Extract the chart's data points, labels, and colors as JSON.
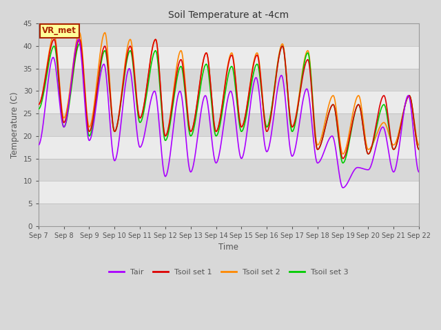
{
  "title": "Soil Temperature at -4cm",
  "xlabel": "Time",
  "ylabel": "Temperature (C)",
  "ylim": [
    0,
    45
  ],
  "xlim": [
    0,
    15
  ],
  "bg_color": "#d8d8d8",
  "plot_bg_color": "#d8d8d8",
  "white_band_color": "#ebebeb",
  "grid_color": "#cccccc",
  "label_color": "#555555",
  "annotation_text": "VR_met",
  "annotation_bg": "#ffff99",
  "annotation_border": "#aa2200",
  "legend_labels": [
    "Tair",
    "Tsoil set 1",
    "Tsoil set 2",
    "Tsoil set 3"
  ],
  "line_colors": [
    "#aa00ff",
    "#dd0000",
    "#ff8800",
    "#00cc00"
  ],
  "xtick_labels": [
    "Sep 7",
    "Sep 8",
    "Sep 9",
    "Sep 10",
    "Sep 11",
    "Sep 12",
    "Sep 13",
    "Sep 14",
    "Sep 15",
    "Sep 16",
    "Sep 17",
    "Sep 18",
    "Sep 19",
    "Sep 20",
    "Sep 21",
    "Sep 22"
  ],
  "ytick_values": [
    0,
    5,
    10,
    15,
    20,
    25,
    30,
    35,
    40,
    45
  ],
  "num_points": 720,
  "days": 15,
  "tair_day_peaks": [
    37.5,
    41.5,
    36.0,
    35.0,
    30.0,
    30.0,
    29.0,
    30.0,
    33.0,
    33.5,
    30.5,
    20.0,
    13.0,
    22.0,
    29.0
  ],
  "tair_night_troughs": [
    18.0,
    22.0,
    19.0,
    14.5,
    17.5,
    11.0,
    12.0,
    14.0,
    15.0,
    16.5,
    15.5,
    14.0,
    8.5,
    12.5,
    12.0
  ],
  "ts1_day_peaks": [
    41.5,
    41.5,
    40.0,
    40.0,
    41.5,
    37.0,
    38.5,
    38.0,
    38.0,
    40.0,
    37.0,
    27.0,
    27.0,
    29.0,
    29.0
  ],
  "ts1_night_troughs": [
    27.0,
    23.0,
    21.0,
    21.0,
    24.0,
    20.0,
    21.0,
    21.0,
    22.0,
    21.0,
    22.0,
    17.0,
    15.0,
    16.0,
    17.0
  ],
  "ts2_day_peaks": [
    42.5,
    43.0,
    43.0,
    41.5,
    41.5,
    39.0,
    38.5,
    38.5,
    38.5,
    40.5,
    39.0,
    29.0,
    29.0,
    23.0,
    29.0
  ],
  "ts2_night_troughs": [
    27.0,
    24.0,
    22.0,
    21.0,
    24.0,
    20.0,
    21.0,
    21.0,
    22.0,
    22.0,
    22.0,
    18.0,
    16.0,
    17.0,
    18.0
  ],
  "ts3_day_peaks": [
    40.0,
    40.5,
    39.0,
    39.0,
    39.0,
    35.5,
    36.0,
    35.5,
    36.0,
    40.0,
    38.5,
    27.0,
    27.0,
    27.0,
    29.0
  ],
  "ts3_night_troughs": [
    26.0,
    22.0,
    20.0,
    21.0,
    23.0,
    19.0,
    20.0,
    20.0,
    21.0,
    22.0,
    21.0,
    17.0,
    14.0,
    16.0,
    17.0
  ],
  "tair_peak_phase": 0.58,
  "ts_peak_phase": 0.62
}
